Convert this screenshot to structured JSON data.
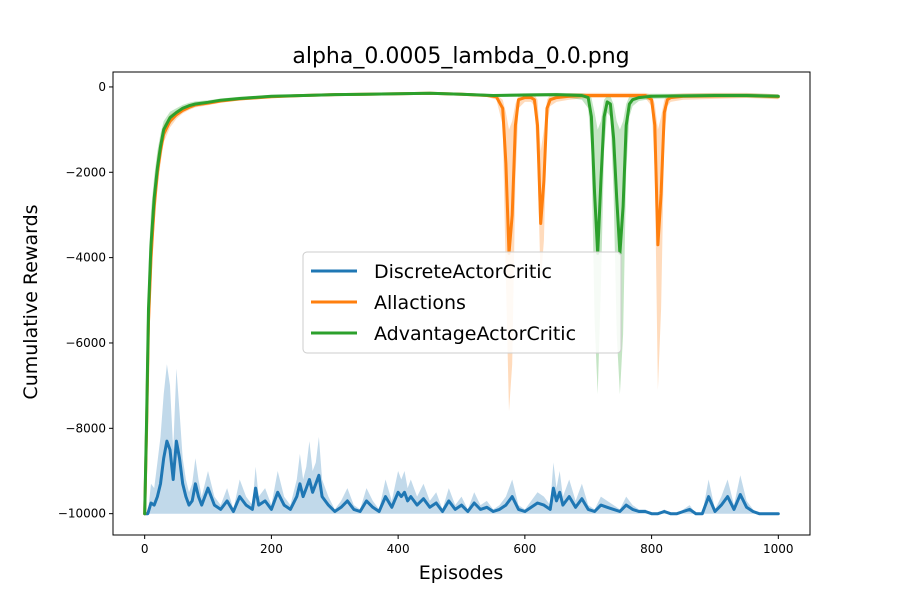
{
  "chart_data": {
    "type": "line",
    "title": "alpha_0.0005_lambda_0.0.png",
    "xlabel": "Episodes",
    "ylabel": "Cumulative Rewards",
    "xlim": [
      -50,
      1050
    ],
    "ylim": [
      -10500,
      350
    ],
    "xticks": [
      0,
      200,
      400,
      600,
      800,
      1000
    ],
    "yticks": [
      0,
      -2000,
      -4000,
      -6000,
      -8000,
      -10000
    ],
    "xtick_labels": [
      "0",
      "200",
      "400",
      "600",
      "800",
      "1000"
    ],
    "ytick_labels": [
      "0",
      "−2000",
      "−4000",
      "−6000",
      "−8000",
      "−10000"
    ],
    "grid": false,
    "legend_position": "center",
    "series": [
      {
        "name": "DiscreteActorCritic",
        "color": "#1f77b4",
        "x": [
          0,
          5,
          10,
          15,
          20,
          25,
          30,
          35,
          40,
          45,
          50,
          55,
          60,
          65,
          70,
          75,
          80,
          85,
          90,
          100,
          110,
          120,
          130,
          140,
          150,
          160,
          170,
          175,
          180,
          190,
          200,
          210,
          220,
          230,
          240,
          245,
          250,
          255,
          260,
          265,
          270,
          275,
          280,
          290,
          300,
          310,
          320,
          330,
          340,
          350,
          360,
          370,
          380,
          390,
          400,
          405,
          410,
          415,
          420,
          430,
          440,
          450,
          460,
          470,
          480,
          490,
          500,
          510,
          520,
          530,
          540,
          550,
          560,
          570,
          580,
          590,
          600,
          610,
          620,
          630,
          640,
          645,
          650,
          655,
          660,
          670,
          680,
          690,
          700,
          710,
          720,
          730,
          740,
          750,
          760,
          770,
          780,
          790,
          800,
          810,
          820,
          830,
          840,
          850,
          860,
          870,
          880,
          890,
          900,
          910,
          920,
          930,
          940,
          950,
          960,
          970,
          980,
          990,
          1000
        ],
        "values": [
          -10000,
          -10000,
          -9750,
          -9800,
          -9600,
          -9300,
          -8700,
          -8300,
          -8500,
          -9200,
          -8300,
          -8700,
          -9300,
          -9600,
          -9800,
          -9700,
          -9300,
          -9600,
          -9800,
          -9400,
          -9800,
          -9900,
          -9700,
          -9950,
          -9600,
          -9800,
          -9900,
          -9400,
          -9800,
          -9700,
          -9900,
          -9500,
          -9800,
          -9900,
          -9600,
          -9300,
          -9600,
          -9400,
          -9200,
          -9500,
          -9300,
          -9100,
          -9600,
          -9800,
          -9950,
          -9850,
          -9700,
          -9900,
          -9950,
          -9700,
          -9850,
          -9950,
          -9600,
          -9850,
          -9500,
          -9600,
          -9500,
          -9700,
          -9600,
          -9800,
          -9650,
          -9850,
          -9750,
          -9950,
          -9700,
          -9900,
          -9800,
          -9950,
          -9750,
          -9900,
          -9850,
          -9950,
          -9900,
          -9800,
          -9600,
          -9900,
          -9950,
          -9850,
          -9750,
          -9800,
          -9900,
          -9400,
          -9700,
          -9500,
          -9800,
          -9600,
          -9850,
          -9650,
          -9900,
          -9950,
          -9800,
          -9850,
          -9900,
          -9950,
          -9800,
          -9900,
          -9950,
          -9950,
          -10000,
          -10000,
          -9950,
          -10000,
          -10000,
          -9950,
          -9900,
          -10000,
          -10000,
          -9600,
          -9950,
          -9800,
          -9600,
          -9900,
          -9550,
          -9850,
          -9950,
          -10000,
          -10000,
          -10000,
          -10000
        ],
        "band_low": [
          -10000,
          -10000,
          -10000,
          -10000,
          -10000,
          -10000,
          -10000,
          -10000,
          -10000,
          -10000,
          -10000,
          -10000,
          -10000,
          -10000,
          -10000,
          -10000,
          -10000,
          -10000,
          -10000,
          -10000,
          -10000,
          -10000,
          -10000,
          -10000,
          -10000,
          -10000,
          -10000,
          -10000,
          -10000,
          -10000,
          -10000,
          -10000,
          -10000,
          -10000,
          -10000,
          -10000,
          -10000,
          -10000,
          -10000,
          -10000,
          -10000,
          -10000,
          -10000,
          -10000,
          -10000,
          -10000,
          -10000,
          -10000,
          -10000,
          -10000,
          -10000,
          -10000,
          -10000,
          -10000,
          -10000,
          -10000,
          -10000,
          -10000,
          -10000,
          -10000,
          -10000,
          -10000,
          -10000,
          -10000,
          -10000,
          -10000,
          -10000,
          -10000,
          -10000,
          -10000,
          -10000,
          -10000,
          -10000,
          -10000,
          -10000,
          -10000,
          -10000,
          -10000,
          -10000,
          -10000,
          -10000,
          -10000,
          -10000,
          -10000,
          -10000,
          -10000,
          -10000,
          -10000,
          -10000,
          -10000,
          -10000,
          -10000,
          -10000,
          -10000,
          -10000,
          -10000,
          -10000,
          -10000,
          -10000,
          -10000,
          -10000,
          -10000,
          -10000,
          -10000,
          -10000,
          -10000,
          -10000,
          -10000,
          -10000,
          -10000,
          -10000,
          -10000,
          -10000,
          -10000,
          -10000,
          -10000,
          -10000,
          -10000,
          -10000
        ],
        "band_high": [
          -10000,
          -10000,
          -9300,
          -9400,
          -8800,
          -8200,
          -7200,
          -6500,
          -7000,
          -8500,
          -6600,
          -7600,
          -8700,
          -9200,
          -9500,
          -9300,
          -8700,
          -9200,
          -9600,
          -9000,
          -9600,
          -9800,
          -9400,
          -9900,
          -9200,
          -9600,
          -9800,
          -8900,
          -9600,
          -9400,
          -9800,
          -9000,
          -9600,
          -9800,
          -9200,
          -8600,
          -9200,
          -8900,
          -8300,
          -9000,
          -8800,
          -8200,
          -9200,
          -9600,
          -9900,
          -9700,
          -9400,
          -9800,
          -9900,
          -9400,
          -9700,
          -9900,
          -9200,
          -9700,
          -9000,
          -9200,
          -9000,
          -9400,
          -9200,
          -9600,
          -9300,
          -9700,
          -9500,
          -9900,
          -9400,
          -9800,
          -9600,
          -9900,
          -9500,
          -9800,
          -9700,
          -9900,
          -9800,
          -9600,
          -9200,
          -9800,
          -9900,
          -9700,
          -9500,
          -9600,
          -9800,
          -8800,
          -9400,
          -9000,
          -9600,
          -9200,
          -9700,
          -9300,
          -9800,
          -9900,
          -9600,
          -9700,
          -9800,
          -9900,
          -9600,
          -9800,
          -9900,
          -9900,
          -10000,
          -10000,
          -9900,
          -10000,
          -10000,
          -9900,
          -9800,
          -10000,
          -10000,
          -9200,
          -9900,
          -9600,
          -9200,
          -9800,
          -9100,
          -9700,
          -9900,
          -10000,
          -10000,
          -10000,
          -10000
        ]
      },
      {
        "name": "Allactions",
        "color": "#ff7f0e",
        "x": [
          0,
          3,
          6,
          10,
          15,
          20,
          25,
          30,
          40,
          50,
          60,
          70,
          80,
          100,
          120,
          150,
          200,
          250,
          300,
          350,
          400,
          450,
          500,
          540,
          555,
          565,
          570,
          575,
          580,
          585,
          590,
          600,
          610,
          615,
          620,
          625,
          630,
          635,
          640,
          650,
          670,
          700,
          730,
          760,
          790,
          800,
          805,
          810,
          815,
          820,
          825,
          830,
          850,
          900,
          950,
          1000
        ],
        "values": [
          -10000,
          -8000,
          -5500,
          -4000,
          -2800,
          -2000,
          -1500,
          -1100,
          -800,
          -650,
          -550,
          -480,
          -420,
          -380,
          -330,
          -280,
          -230,
          -200,
          -180,
          -170,
          -160,
          -150,
          -170,
          -200,
          -230,
          -500,
          -1800,
          -3900,
          -3000,
          -900,
          -300,
          -250,
          -250,
          -300,
          -900,
          -3200,
          -2200,
          -500,
          -300,
          -250,
          -220,
          -200,
          -200,
          -200,
          -200,
          -300,
          -900,
          -3700,
          -2500,
          -600,
          -300,
          -250,
          -220,
          -210,
          -200,
          -230
        ],
        "band_low": [
          -10000,
          -9000,
          -6500,
          -4800,
          -3300,
          -2400,
          -1800,
          -1300,
          -950,
          -750,
          -620,
          -540,
          -480,
          -430,
          -370,
          -320,
          -260,
          -230,
          -210,
          -200,
          -190,
          -180,
          -200,
          -230,
          -300,
          -900,
          -4500,
          -7600,
          -6500,
          -2200,
          -500,
          -350,
          -350,
          -450,
          -1800,
          -4600,
          -3600,
          -900,
          -450,
          -350,
          -300,
          -260,
          -260,
          -260,
          -260,
          -450,
          -2000,
          -7100,
          -5200,
          -1200,
          -450,
          -350,
          -300,
          -280,
          -260,
          -290
        ],
        "band_high": [
          -10000,
          -7000,
          -4500,
          -3200,
          -2300,
          -1600,
          -1200,
          -900,
          -650,
          -550,
          -480,
          -420,
          -370,
          -330,
          -290,
          -240,
          -200,
          -170,
          -150,
          -140,
          -130,
          -120,
          -140,
          -170,
          -180,
          -300,
          -600,
          -1000,
          -800,
          -400,
          -200,
          -170,
          -170,
          -180,
          -300,
          -1500,
          -1000,
          -300,
          -180,
          -170,
          -150,
          -140,
          -140,
          -140,
          -140,
          -180,
          -400,
          -1000,
          -700,
          -300,
          -180,
          -170,
          -150,
          -140,
          -140,
          -170
        ]
      },
      {
        "name": "AdvantageActorCritic",
        "color": "#2ca02c",
        "x": [
          0,
          3,
          6,
          10,
          15,
          20,
          25,
          30,
          40,
          50,
          60,
          70,
          80,
          100,
          120,
          150,
          200,
          250,
          300,
          350,
          400,
          450,
          500,
          550,
          600,
          650,
          690,
          700,
          705,
          710,
          715,
          720,
          725,
          730,
          735,
          740,
          745,
          750,
          755,
          760,
          765,
          770,
          780,
          800,
          850,
          900,
          950,
          1000
        ],
        "values": [
          -10000,
          -7800,
          -5200,
          -3700,
          -2600,
          -1900,
          -1400,
          -1000,
          -720,
          -600,
          -500,
          -440,
          -400,
          -360,
          -310,
          -270,
          -220,
          -200,
          -180,
          -170,
          -160,
          -150,
          -170,
          -200,
          -190,
          -180,
          -200,
          -250,
          -700,
          -2500,
          -3900,
          -2200,
          -700,
          -350,
          -400,
          -1200,
          -2600,
          -3900,
          -2800,
          -900,
          -400,
          -300,
          -250,
          -220,
          -210,
          -200,
          -200,
          -220
        ],
        "band_low": [
          -10000,
          -8800,
          -6200,
          -4500,
          -3100,
          -2300,
          -1700,
          -1200,
          -870,
          -700,
          -580,
          -510,
          -460,
          -410,
          -350,
          -310,
          -250,
          -230,
          -210,
          -200,
          -190,
          -180,
          -200,
          -230,
          -230,
          -220,
          -300,
          -500,
          -1500,
          -5500,
          -7200,
          -4700,
          -1500,
          -600,
          -700,
          -2500,
          -5800,
          -7200,
          -5800,
          -2000,
          -700,
          -450,
          -330,
          -280,
          -260,
          -250,
          -250,
          -270
        ],
        "band_high": [
          -10000,
          -6800,
          -4200,
          -2900,
          -2100,
          -1500,
          -1100,
          -800,
          -580,
          -500,
          -420,
          -370,
          -340,
          -310,
          -270,
          -230,
          -190,
          -170,
          -150,
          -140,
          -130,
          -120,
          -140,
          -170,
          -150,
          -140,
          -150,
          -170,
          -250,
          -600,
          -1000,
          -800,
          -300,
          -200,
          -220,
          -400,
          -800,
          -1000,
          -800,
          -400,
          -220,
          -180,
          -170,
          -160,
          -160,
          -150,
          -150,
          -170
        ]
      }
    ]
  }
}
